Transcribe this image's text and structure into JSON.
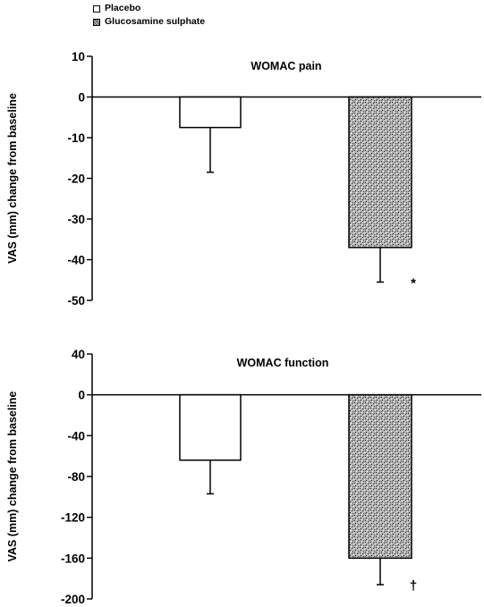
{
  "legend": {
    "items": [
      {
        "label": "Placebo",
        "swatch": "white"
      },
      {
        "label": "Glucosamine sulphate",
        "swatch": "stippled"
      }
    ]
  },
  "chart_data": [
    {
      "type": "bar",
      "title": "WOMAC pain",
      "ylabel": "VAS (mm) change from baseline",
      "xlabel": "",
      "ylim": [
        -50,
        10
      ],
      "yticks": [
        10,
        0,
        -10,
        -20,
        -30,
        -40,
        -50
      ],
      "categories": [
        "Placebo",
        "Glucosamine sulphate"
      ],
      "values": [
        -7.5,
        -37
      ],
      "error_lower": [
        -18.5,
        -45.5
      ],
      "annotations": [
        "",
        "*"
      ],
      "colors": [
        "#ffffff",
        "#9a9a9a"
      ]
    },
    {
      "type": "bar",
      "title": "WOMAC function",
      "ylabel": "VAS (mm) change from baseline",
      "xlabel": "",
      "ylim": [
        -200,
        40
      ],
      "yticks": [
        40,
        0,
        -40,
        -80,
        -120,
        -160,
        -200
      ],
      "categories": [
        "Placebo",
        "Glucosamine sulphate"
      ],
      "values": [
        -64,
        -160
      ],
      "error_lower": [
        -97,
        -186
      ],
      "annotations": [
        "",
        "†"
      ],
      "colors": [
        "#ffffff",
        "#9a9a9a"
      ]
    }
  ]
}
